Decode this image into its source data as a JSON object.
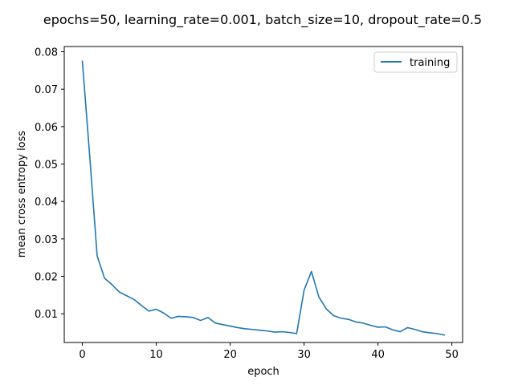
{
  "chart_data": {
    "type": "line",
    "title": "epochs=50, learning_rate=0.001, batch_size=10, dropout_rate=0.5",
    "xlabel": "epoch",
    "ylabel": "mean cross entropy loss",
    "xlim": [
      -2.45,
      51.45
    ],
    "ylim": [
      0.00232,
      0.0814
    ],
    "xticks": [
      0,
      10,
      20,
      30,
      40,
      50
    ],
    "yticks": [
      0.01,
      0.02,
      0.03,
      0.04,
      0.05,
      0.06,
      0.07,
      0.08
    ],
    "ytick_labels": [
      "0.01",
      "0.02",
      "0.03",
      "0.04",
      "0.05",
      "0.06",
      "0.07",
      "0.08"
    ],
    "grid": false,
    "legend_position": "top-right",
    "series": [
      {
        "name": "training",
        "color": "#1f77b4",
        "x": [
          0,
          1,
          2,
          3,
          4,
          5,
          6,
          7,
          8,
          9,
          10,
          11,
          12,
          13,
          14,
          15,
          16,
          17,
          18,
          19,
          20,
          21,
          22,
          23,
          24,
          25,
          26,
          27,
          28,
          29,
          30,
          31,
          32,
          33,
          34,
          35,
          36,
          37,
          38,
          39,
          40,
          41,
          42,
          43,
          44,
          45,
          46,
          47,
          48,
          49
        ],
        "values": [
          0.0775,
          0.052,
          0.0255,
          0.0195,
          0.0178,
          0.0158,
          0.0148,
          0.0138,
          0.0122,
          0.0107,
          0.0112,
          0.0102,
          0.0088,
          0.0093,
          0.0092,
          0.009,
          0.0082,
          0.009,
          0.0075,
          0.0071,
          0.0067,
          0.0063,
          0.006,
          0.0058,
          0.0056,
          0.0054,
          0.0051,
          0.0052,
          0.005,
          0.0047,
          0.0163,
          0.0213,
          0.0145,
          0.0113,
          0.0095,
          0.0088,
          0.0085,
          0.0078,
          0.0075,
          0.0069,
          0.0064,
          0.0065,
          0.0057,
          0.0052,
          0.0063,
          0.0058,
          0.0052,
          0.0049,
          0.0047,
          0.0043
        ]
      }
    ]
  }
}
